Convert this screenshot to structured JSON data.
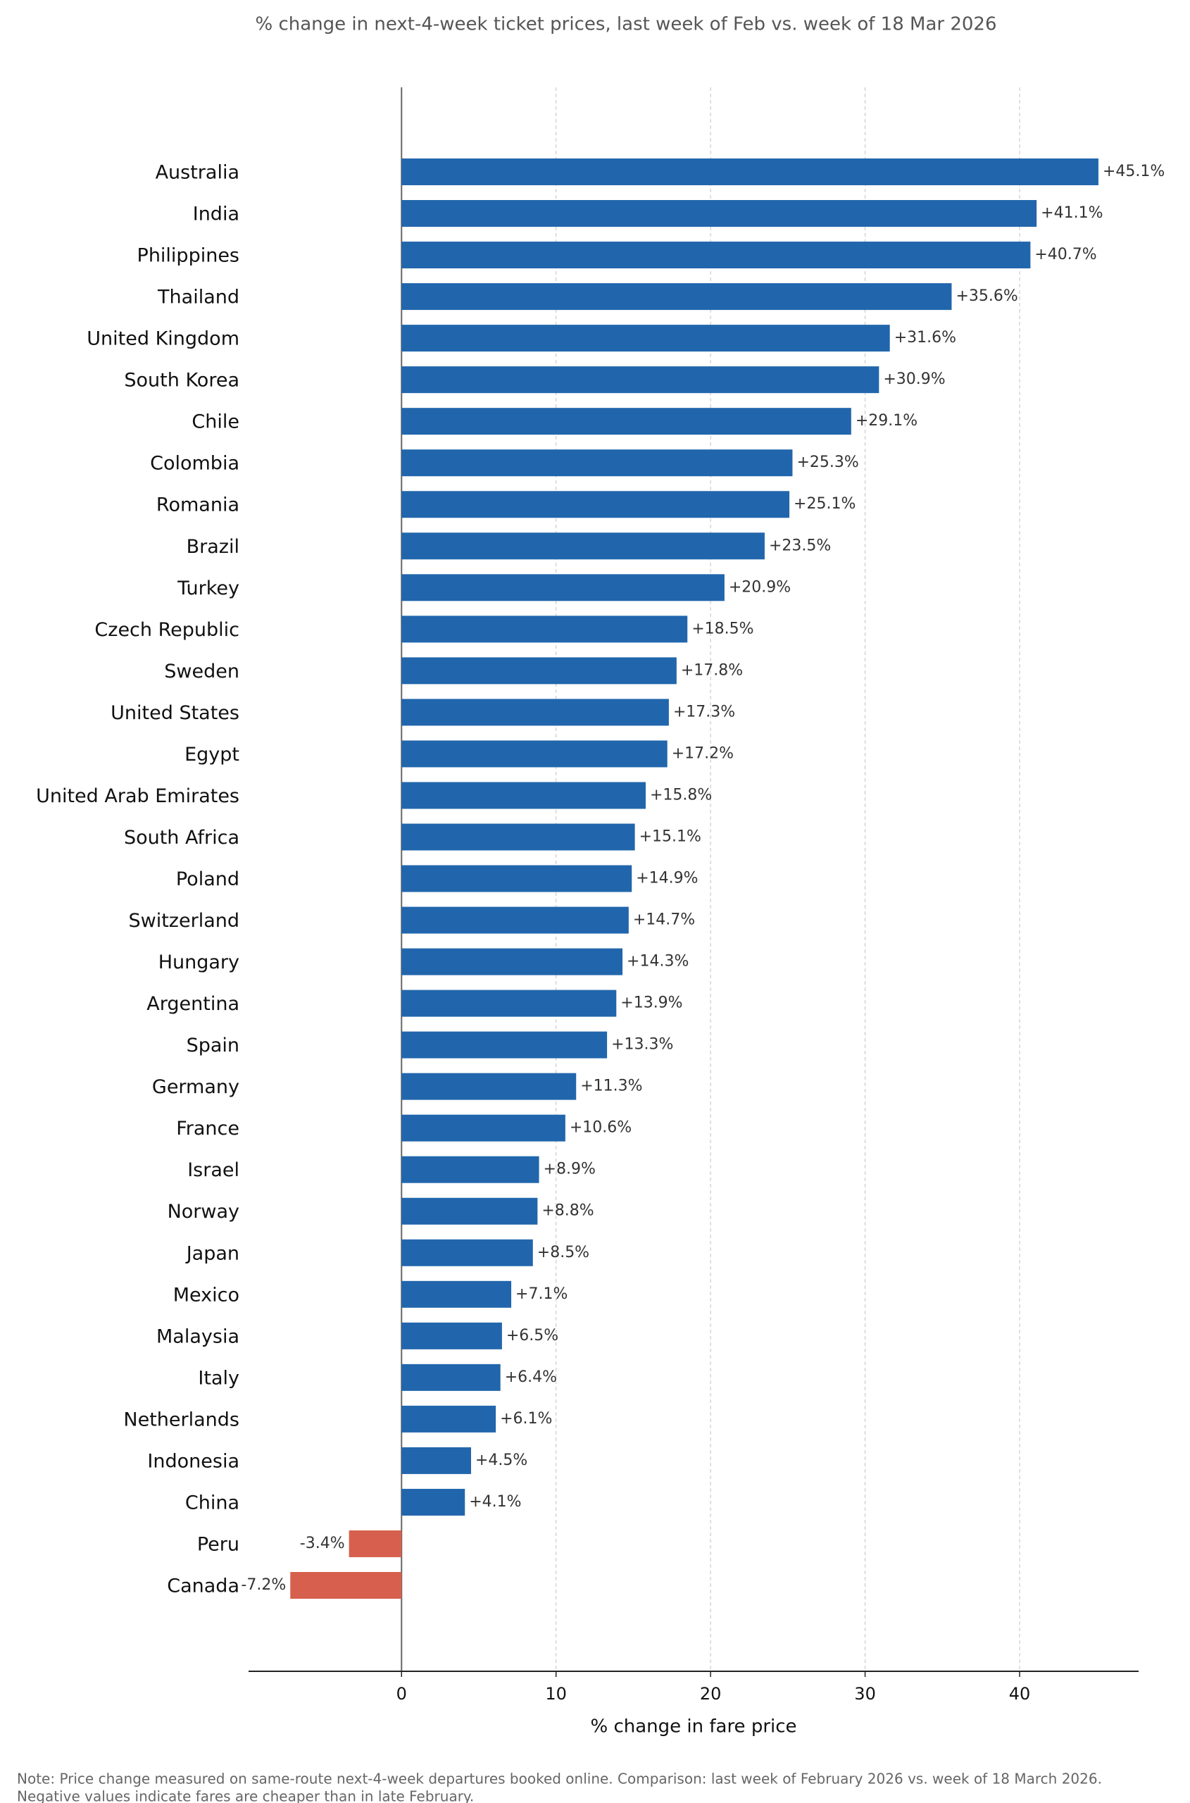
{
  "chart_data": {
    "type": "barh",
    "title": "% change in next-4-week ticket prices, last week of Feb vs. week of 18 Mar 2026",
    "xlabel": "% change in fare price",
    "note": [
      "Note: Price change measured on same-route next-4-week departures booked online. Comparison: last week of February 2026 vs. week of 18 March 2026.",
      "Negative values indicate fares are cheaper than in late February."
    ],
    "categories": [
      "Australia",
      "India",
      "Philippines",
      "Thailand",
      "United Kingdom",
      "South Korea",
      "Chile",
      "Colombia",
      "Romania",
      "Brazil",
      "Turkey",
      "Czech Republic",
      "Sweden",
      "United States",
      "Egypt",
      "United Arab Emirates",
      "South Africa",
      "Poland",
      "Switzerland",
      "Hungary",
      "Argentina",
      "Spain",
      "Germany",
      "France",
      "Israel",
      "Norway",
      "Japan",
      "Mexico",
      "Malaysia",
      "Italy",
      "Netherlands",
      "Indonesia",
      "China",
      "Peru",
      "Canada"
    ],
    "values": [
      45.1,
      41.1,
      40.7,
      35.6,
      31.6,
      30.9,
      29.1,
      25.3,
      25.1,
      23.5,
      20.9,
      18.5,
      17.8,
      17.3,
      17.2,
      15.8,
      15.1,
      14.9,
      14.7,
      14.3,
      13.9,
      13.3,
      11.3,
      10.6,
      8.9,
      8.8,
      8.5,
      7.1,
      6.5,
      6.4,
      6.1,
      4.5,
      4.1,
      -3.4,
      -7.2
    ],
    "value_labels": [
      "+45.1%",
      "+41.1%",
      "+40.7%",
      "+35.6%",
      "+31.6%",
      "+30.9%",
      "+29.1%",
      "+25.3%",
      "+25.1%",
      "+23.5%",
      "+20.9%",
      "+18.5%",
      "+17.8%",
      "+17.3%",
      "+17.2%",
      "+15.8%",
      "+15.1%",
      "+14.9%",
      "+14.7%",
      "+14.3%",
      "+13.9%",
      "+13.3%",
      "+11.3%",
      "+10.6%",
      "+8.9%",
      "+8.8%",
      "+8.5%",
      "+7.1%",
      "+6.5%",
      "+6.4%",
      "+6.1%",
      "+4.5%",
      "+4.1%",
      "-3.4%",
      "-7.2%"
    ],
    "positive_color": "#2166ac",
    "negative_color": "#d6604d",
    "xlim": [
      -9.9,
      47.7
    ],
    "xticks": [
      0,
      10,
      20,
      30,
      40
    ],
    "grid": true
  }
}
